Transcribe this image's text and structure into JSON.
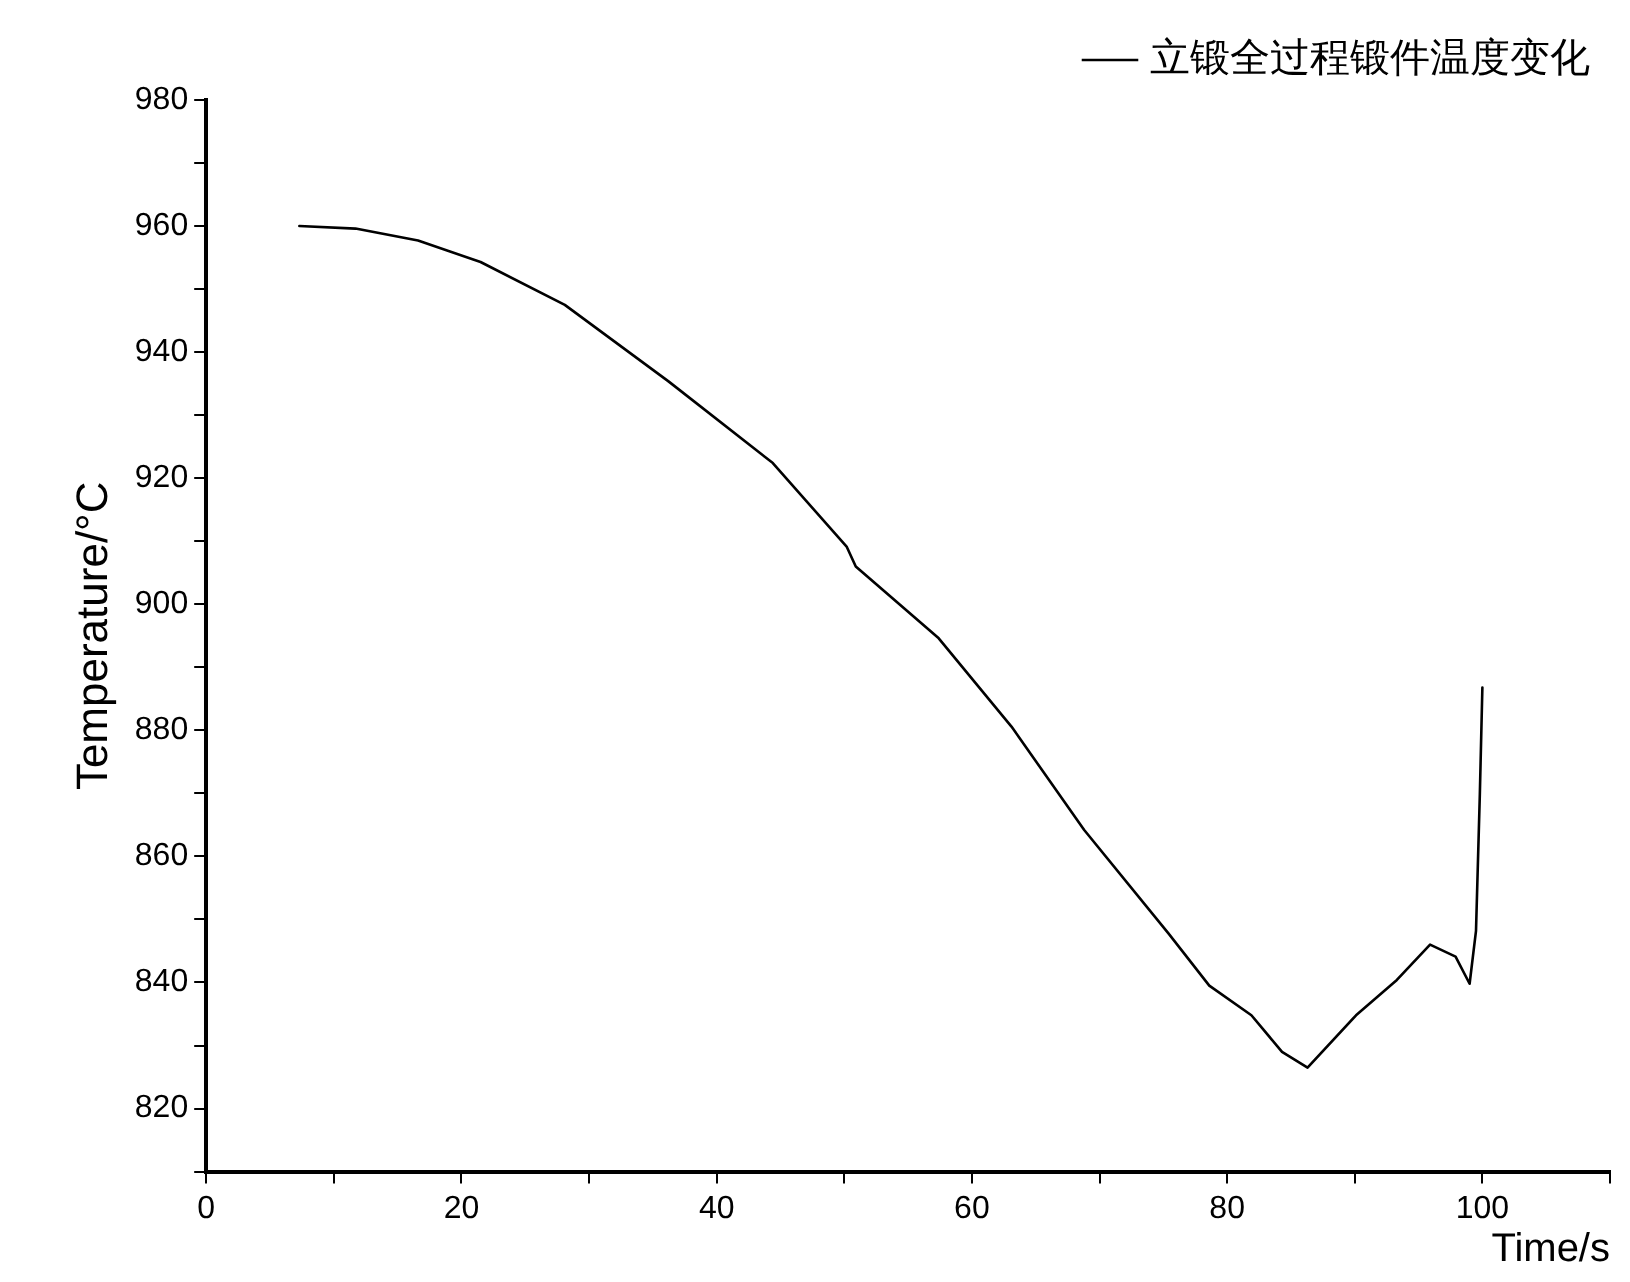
{
  "chart_data": {
    "type": "line",
    "xlabel": "Time/s",
    "ylabel": "Temperature/°C",
    "xlim": [
      0,
      110
    ],
    "ylim": [
      810,
      980
    ],
    "xticks": [
      0,
      {
        "value": 10,
        "label": null
      },
      20,
      {
        "value": 30,
        "label": null
      },
      40,
      {
        "value": 50,
        "label": null
      },
      60,
      {
        "value": 70,
        "label": null
      },
      80,
      {
        "value": 90,
        "label": null
      },
      100,
      {
        "value": 110,
        "label": null
      }
    ],
    "yticks": [
      {
        "value": 810,
        "label": null
      },
      820,
      {
        "value": 830,
        "label": null
      },
      840,
      {
        "value": 850,
        "label": null
      },
      860,
      {
        "value": 870,
        "label": null
      },
      880,
      {
        "value": 890,
        "label": null
      },
      900,
      {
        "value": 910,
        "label": null
      },
      920,
      {
        "value": 930,
        "label": null
      },
      940,
      {
        "value": 950,
        "label": null
      },
      960,
      {
        "value": 970,
        "label": null
      },
      980
    ],
    "grid": false,
    "legend": "top right",
    "marker": "none",
    "line_style": "solid",
    "series": [
      {
        "name": "立锻全过程锻件温度变化",
        "color": "#000000",
        "x": [
          7.3,
          11.7,
          16.6,
          21.5,
          28.1,
          36.2,
          44.4,
          50.2,
          50.9,
          57.4,
          63.1,
          68.8,
          75.4,
          78.6,
          81.9,
          84.3,
          86.3,
          90.1,
          93.3,
          95.9,
          97.9,
          99.0,
          99.5,
          99.8,
          100
        ],
        "values": [
          960,
          959.6,
          957.7,
          954.3,
          947.5,
          935.4,
          922.4,
          909.1,
          906,
          894.6,
          880.6,
          864.2,
          847.8,
          839.5,
          834.8,
          829,
          826.5,
          834.8,
          840.4,
          846,
          844.1,
          839.8,
          848.2,
          869.8,
          886.8
        ]
      }
    ]
  }
}
